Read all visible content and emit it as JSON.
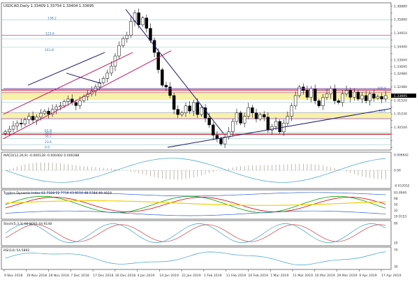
{
  "window": {
    "symbol_label": "USDCAD,Daily",
    "ohlc_text": "1.33409 1.33754 1.33404 1.33695"
  },
  "chart_data": {
    "type": "candlestick",
    "symbol": "USDCAD",
    "timeframe": "Daily",
    "last_price": 1.33695,
    "price_ylim": [
      1.3054,
      1.3908
    ],
    "price_ticks": [
      1.3888,
      1.3849,
      1.381,
      1.3771,
      1.3732,
      1.3693,
      1.3654,
      1.3615,
      1.3576,
      1.3537,
      1.3498,
      1.3459,
      1.342,
      1.3381,
      1.3342,
      1.3303,
      1.3264,
      1.3225,
      1.3186,
      1.3147,
      1.3108,
      1.3069
    ],
    "price_tick_labels": [
      "1.38880",
      "",
      "1.35890",
      "",
      "1.34910",
      "",
      "1.34440",
      "",
      "1.33940",
      "1.33695",
      "1.32980",
      "",
      "1.32480",
      "",
      "1.31520",
      "",
      "1.31030",
      "",
      "1.30540",
      "",
      "",
      ""
    ],
    "fib_labels": [
      "138.2",
      "123.6",
      "161.8",
      "100.0",
      "76.4",
      "61.8",
      "50.0",
      "38.2",
      "23.6",
      "0.0"
    ],
    "x_labels": [
      "9 Nov 2018",
      "19 Nov 2018",
      "28 Nov 2018",
      "7 Dec 2018",
      "17 Dec 2018",
      "26 Dec 2018",
      "4 Jan 2019",
      "14 Jan 2019",
      "22 Jan 2019",
      "1 Feb 2019",
      "11 Feb 2019",
      "20 Feb 2019",
      "1 Mar 2019",
      "11 Mar 2019",
      "20 Mar 2019",
      "29 Mar 2019",
      "9 Apr 2019",
      "17 Apr 2019"
    ],
    "candles_close": [
      1.316,
      1.3175,
      1.3195,
      1.321,
      1.3205,
      1.323,
      1.325,
      1.3228,
      1.3245,
      1.3268,
      1.328,
      1.3262,
      1.329,
      1.3305,
      1.331,
      1.3335,
      1.335,
      1.333,
      1.3312,
      1.334,
      1.3365,
      1.338,
      1.3395,
      1.342,
      1.3445,
      1.347,
      1.35,
      1.354,
      1.36,
      1.366,
      1.37,
      1.372,
      1.38,
      1.385,
      1.378,
      1.382,
      1.376,
      1.369,
      1.362,
      1.352,
      1.343,
      1.342,
      1.337,
      1.329,
      1.326,
      1.327,
      1.331,
      1.328,
      1.333,
      1.326,
      1.33,
      1.324,
      1.32,
      1.314,
      1.312,
      1.309,
      1.313,
      1.316,
      1.322,
      1.327,
      1.321,
      1.325,
      1.33,
      1.327,
      1.3235,
      1.326,
      1.3245,
      1.317,
      1.319,
      1.322,
      1.316,
      1.321,
      1.325,
      1.331,
      1.337,
      1.342,
      1.34,
      1.336,
      1.341,
      1.334,
      1.331,
      1.336,
      1.338,
      1.341,
      1.334,
      1.333,
      1.338,
      1.34,
      1.336,
      1.339,
      1.335,
      1.337,
      1.334,
      1.338,
      1.3355,
      1.3365,
      1.335,
      1.337
    ],
    "indicators": [
      {
        "label": "MACD(12,26,9) -0.000128 -0.000402 0.000288",
        "ticks": [
          "0.006642",
          "0.00",
          "-0.012052"
        ]
      },
      {
        "label": "Traders Dynamic Index 61.7328 52.7719 43.8110 48.5784 49.4019",
        "ticks": [
          "83.8949",
          "68",
          "50",
          "32",
          "19.9153"
        ]
      },
      {
        "label": "Stoch(5,3,3) 60.8093 44.9148",
        "ticks": [
          "80",
          "20"
        ]
      },
      {
        "label": "RSI(14) 54.5892",
        "ticks": [
          "70",
          "30"
        ]
      }
    ]
  }
}
